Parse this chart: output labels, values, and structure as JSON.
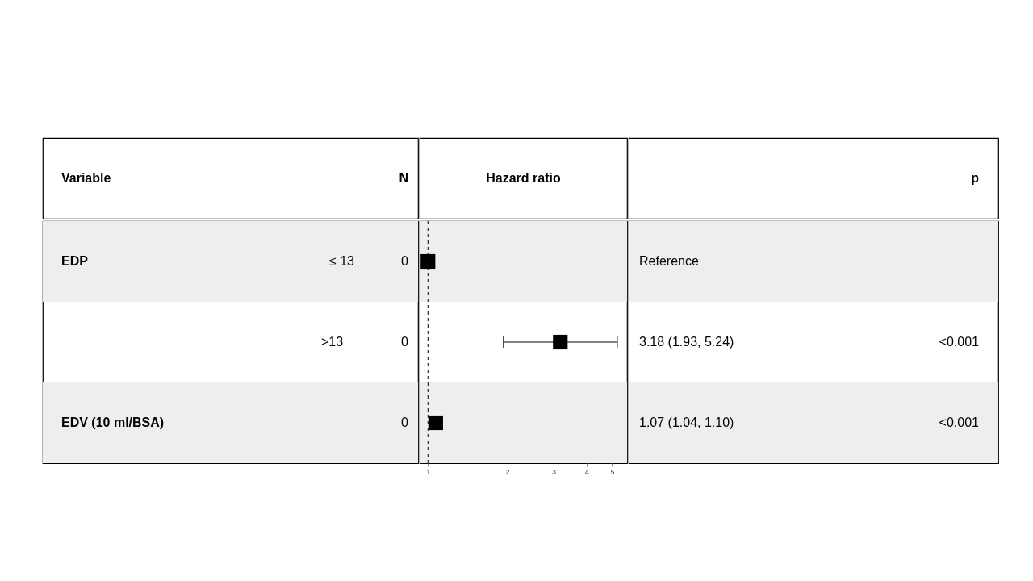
{
  "chart_data": {
    "type": "scatter",
    "orientation": "horizontal",
    "xlabel": "Hazard ratio",
    "categories": [
      null,
      null,
      null
    ],
    "values": [
      1,
      3.18,
      1.07
    ],
    "errors": [
      null,
      [
        1.93,
        5.24
      ],
      null
    ],
    "color": "#000000",
    "marker": "square",
    "log": "x",
    "xlim": [
      0.93,
      5.7
    ],
    "xticks": [
      1,
      2,
      3,
      4,
      5
    ],
    "grid": false,
    "ref_lines": [
      {
        "axis": "x",
        "value": 1,
        "line_style": "dashed",
        "color": "#000000"
      }
    ],
    "annotations": [
      "Variable",
      "N",
      "p",
      "EDP",
      "≤ 13",
      "0",
      "Reference",
      ">13",
      "0",
      "3.18 (1.93, 5.24)",
      "<0.001",
      "EDV (10 ml/BSA)",
      "0",
      "1.07 (1.04, 1.10)",
      "<0.001"
    ]
  }
}
